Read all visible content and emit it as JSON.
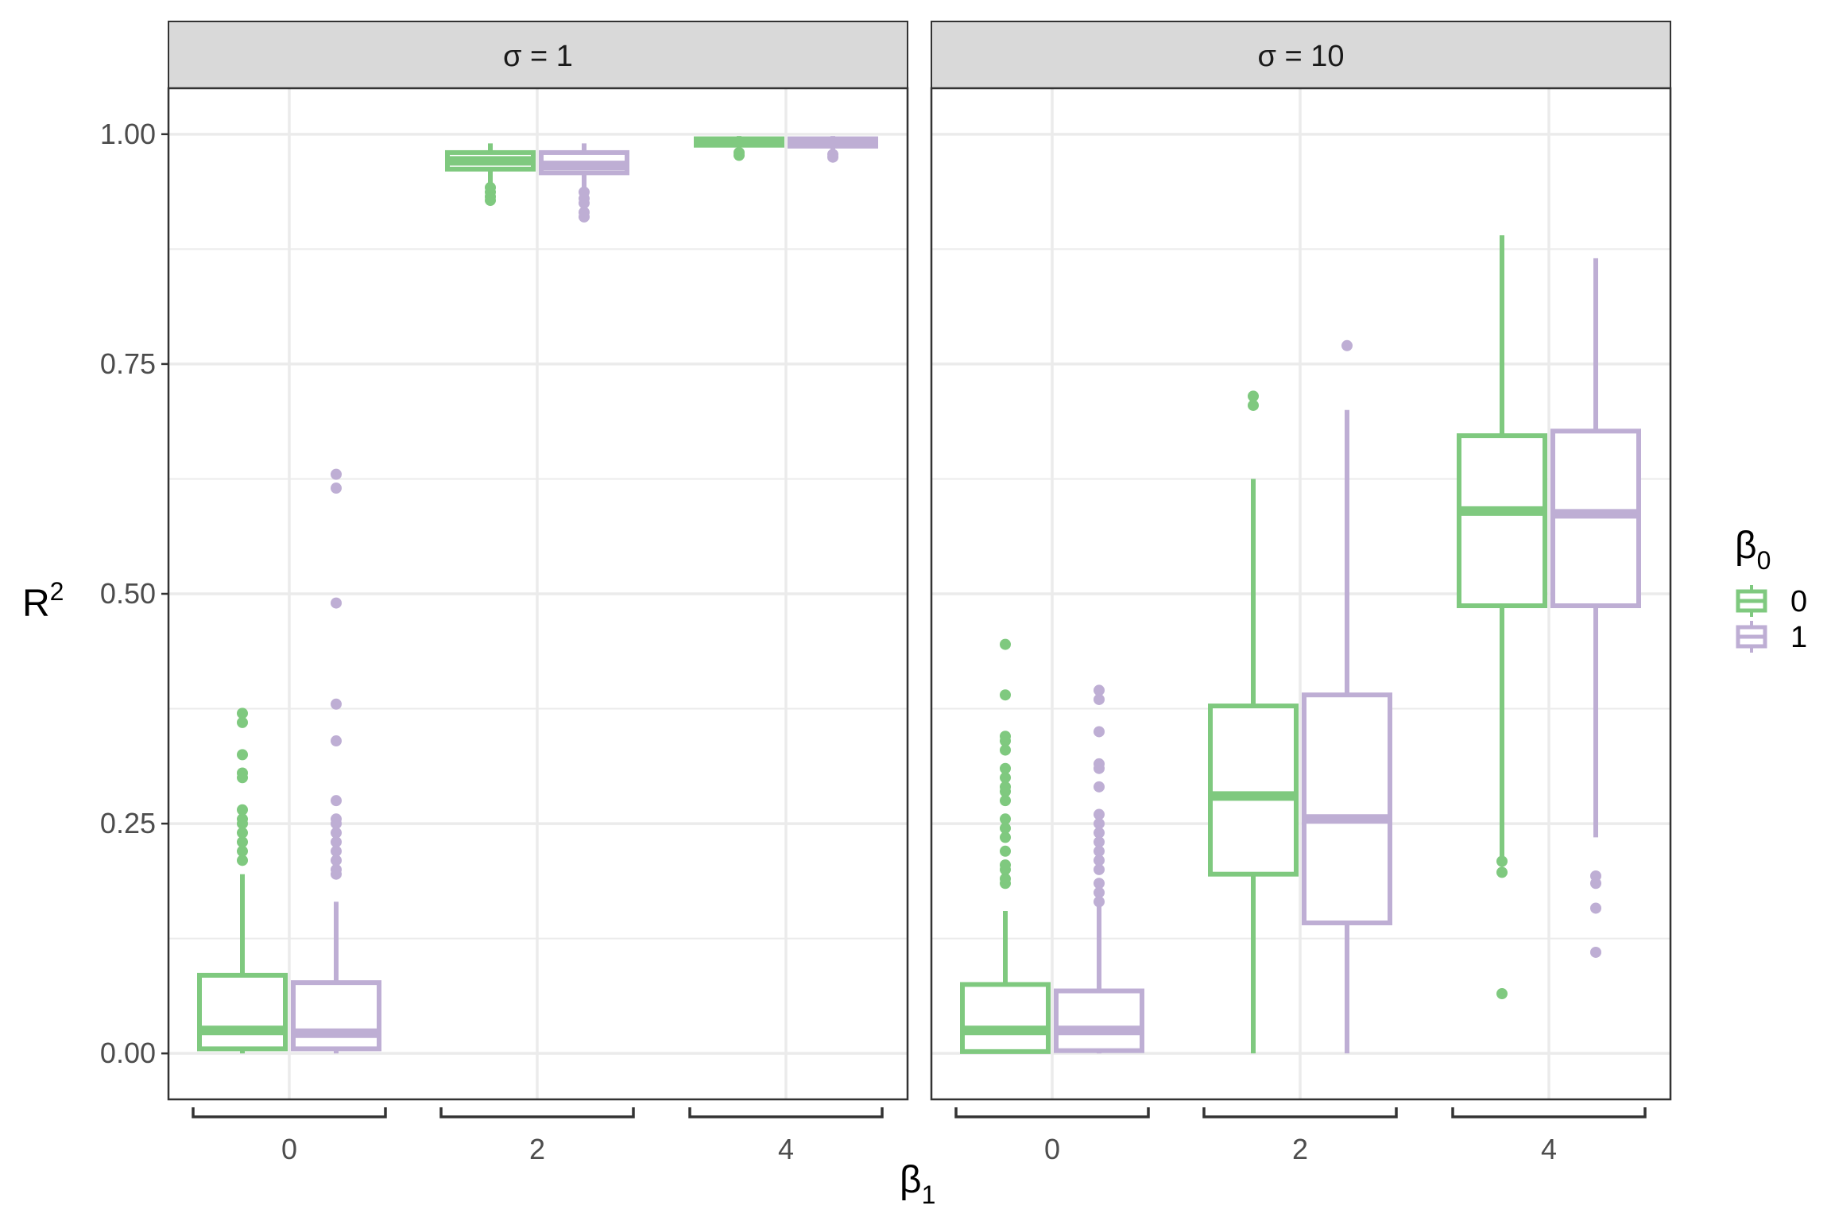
{
  "chart_data": {
    "type": "boxplot",
    "xlabel": "β",
    "xlabel_sub": "1",
    "ylabel": "R",
    "ylabel_sup": "2",
    "ylim": [
      -0.05,
      1.05
    ],
    "y_ticks": [
      "0.00",
      "0.25",
      "0.50",
      "0.75",
      "1.00"
    ],
    "y_tick_values": [
      0,
      0.25,
      0.5,
      0.75,
      1.0
    ],
    "categories": [
      "0",
      "2",
      "4"
    ],
    "grid": true,
    "legend": {
      "title": "β",
      "title_sub": "0",
      "position": "right",
      "entries": [
        {
          "label": "0",
          "color": "#7fc97f"
        },
        {
          "label": "1",
          "color": "#beaed4"
        }
      ]
    },
    "panels": [
      {
        "title": "σ = 1",
        "series": [
          {
            "name": "0",
            "color": "#7fc97f",
            "boxes": [
              {
                "x": "0",
                "low": 0.0,
                "q1": 0.005,
                "median": 0.025,
                "q3": 0.085,
                "high": 0.195,
                "outliers": [
                  0.21,
                  0.22,
                  0.23,
                  0.24,
                  0.25,
                  0.255,
                  0.265,
                  0.3,
                  0.305,
                  0.325,
                  0.36,
                  0.37
                ]
              },
              {
                "x": "2",
                "low": 0.945,
                "q1": 0.962,
                "median": 0.971,
                "q3": 0.98,
                "high": 0.99,
                "outliers": [
                  0.928,
                  0.932,
                  0.937,
                  0.942
                ]
              },
              {
                "x": "4",
                "low": 0.984,
                "q1": 0.988,
                "median": 0.992,
                "q3": 0.995,
                "high": 0.998,
                "outliers": [
                  0.977,
                  0.98
                ]
              }
            ]
          },
          {
            "name": "1",
            "color": "#beaed4",
            "boxes": [
              {
                "x": "0",
                "low": 0.0,
                "q1": 0.005,
                "median": 0.022,
                "q3": 0.077,
                "high": 0.165,
                "outliers": [
                  0.195,
                  0.2,
                  0.21,
                  0.22,
                  0.23,
                  0.24,
                  0.25,
                  0.255,
                  0.275,
                  0.34,
                  0.38,
                  0.49,
                  0.615,
                  0.63
                ]
              },
              {
                "x": "2",
                "low": 0.94,
                "q1": 0.958,
                "median": 0.966,
                "q3": 0.98,
                "high": 0.99,
                "outliers": [
                  0.91,
                  0.915,
                  0.925,
                  0.93,
                  0.937
                ]
              },
              {
                "x": "4",
                "low": 0.983,
                "q1": 0.987,
                "median": 0.991,
                "q3": 0.995,
                "high": 0.998,
                "outliers": [
                  0.975,
                  0.978
                ]
              }
            ]
          }
        ]
      },
      {
        "title": "σ = 10",
        "series": [
          {
            "name": "0",
            "color": "#7fc97f",
            "boxes": [
              {
                "x": "0",
                "low": 0.0,
                "q1": 0.002,
                "median": 0.025,
                "q3": 0.075,
                "high": 0.155,
                "outliers": [
                  0.185,
                  0.19,
                  0.2,
                  0.205,
                  0.22,
                  0.235,
                  0.245,
                  0.255,
                  0.275,
                  0.285,
                  0.29,
                  0.3,
                  0.31,
                  0.33,
                  0.34,
                  0.345,
                  0.39,
                  0.445
                ]
              },
              {
                "x": "2",
                "low": 0.0,
                "q1": 0.195,
                "median": 0.28,
                "q3": 0.378,
                "high": 0.625,
                "outliers": [
                  0.705,
                  0.715
                ]
              },
              {
                "x": "4",
                "low": 0.21,
                "q1": 0.487,
                "median": 0.59,
                "q3": 0.672,
                "high": 0.89,
                "outliers": [
                  0.065,
                  0.197,
                  0.209
                ]
              }
            ]
          },
          {
            "name": "1",
            "color": "#beaed4",
            "boxes": [
              {
                "x": "0",
                "low": 0.0,
                "q1": 0.003,
                "median": 0.025,
                "q3": 0.068,
                "high": 0.16,
                "outliers": [
                  0.165,
                  0.175,
                  0.185,
                  0.2,
                  0.21,
                  0.22,
                  0.23,
                  0.24,
                  0.25,
                  0.26,
                  0.29,
                  0.31,
                  0.315,
                  0.35,
                  0.385,
                  0.395
                ]
              },
              {
                "x": "2",
                "low": 0.0,
                "q1": 0.142,
                "median": 0.255,
                "q3": 0.39,
                "high": 0.7,
                "outliers": [
                  0.77
                ]
              },
              {
                "x": "4",
                "low": 0.235,
                "q1": 0.487,
                "median": 0.587,
                "q3": 0.677,
                "high": 0.865,
                "outliers": [
                  0.11,
                  0.158,
                  0.185,
                  0.193
                ]
              }
            ]
          }
        ]
      }
    ]
  }
}
